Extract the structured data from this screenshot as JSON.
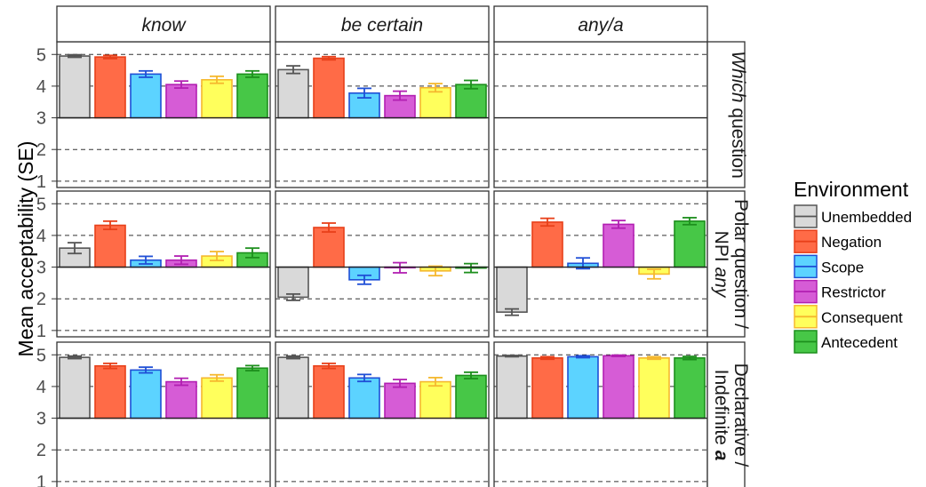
{
  "chart_data": {
    "type": "bar",
    "ylabel": "Mean acceptability (SE)",
    "baseline": 3,
    "ylim": [
      0.8,
      5.4
    ],
    "yticks": [
      1,
      2,
      3,
      4,
      5
    ],
    "grid": "dashed horizontal at integer values",
    "categories": [
      "Unembedded",
      "Negation",
      "Scope",
      "Restrictor",
      "Consequent",
      "Antecedent"
    ],
    "column_facets": [
      "know",
      "be certain",
      "any/a"
    ],
    "row_facets": [
      {
        "pre": "",
        "italic": "Which",
        "post": " question"
      },
      {
        "pre": "Polar question /",
        "italic": "",
        "post": "",
        "line2_pre": "NPI ",
        "line2_italic": "any"
      },
      {
        "pre": "Declarative /",
        "italic": "",
        "post": "",
        "line2_pre": "Indefinite ",
        "line2_bold_italic": "a"
      }
    ],
    "legend": {
      "title": "Environment",
      "position": "right",
      "entries": [
        {
          "label": "Unembedded",
          "fill": "#d9d9d9",
          "stroke": "#555555"
        },
        {
          "label": "Negation",
          "fill": "#ff6b47",
          "stroke": "#e8401a"
        },
        {
          "label": "Scope",
          "fill": "#5cd3ff",
          "stroke": "#1f4fd6"
        },
        {
          "label": "Restrictor",
          "fill": "#d65cd6",
          "stroke": "#b21fb2"
        },
        {
          "label": "Consequent",
          "fill": "#ffff5c",
          "stroke": "#f5b82e"
        },
        {
          "label": "Antecedent",
          "fill": "#47c747",
          "stroke": "#1d8f1d"
        }
      ]
    },
    "panels": [
      {
        "row": 0,
        "col": 0,
        "values": [
          4.95,
          4.92,
          4.38,
          4.05,
          4.2,
          4.38
        ],
        "se": [
          0.04,
          0.05,
          0.1,
          0.11,
          0.11,
          0.1
        ]
      },
      {
        "row": 0,
        "col": 1,
        "values": [
          4.52,
          4.88,
          3.78,
          3.7,
          3.95,
          4.05
        ],
        "se": [
          0.12,
          0.05,
          0.15,
          0.14,
          0.13,
          0.13
        ]
      },
      {
        "row": 0,
        "col": 2,
        "values": [
          3,
          3,
          3,
          3,
          3,
          3
        ],
        "se": [
          0,
          0,
          0,
          0,
          0,
          0
        ]
      },
      {
        "row": 1,
        "col": 0,
        "values": [
          3.6,
          4.32,
          3.22,
          3.22,
          3.35,
          3.45
        ],
        "se": [
          0.17,
          0.13,
          0.12,
          0.13,
          0.14,
          0.15
        ]
      },
      {
        "row": 1,
        "col": 1,
        "values": [
          2.05,
          4.25,
          2.6,
          2.98,
          2.88,
          2.97
        ],
        "se": [
          0.1,
          0.14,
          0.14,
          0.16,
          0.15,
          0.14
        ]
      },
      {
        "row": 1,
        "col": 2,
        "values": [
          1.58,
          4.42,
          3.12,
          4.35,
          2.78,
          4.45
        ],
        "se": [
          0.1,
          0.12,
          0.17,
          0.12,
          0.15,
          0.11
        ]
      },
      {
        "row": 2,
        "col": 0,
        "values": [
          4.92,
          4.65,
          4.52,
          4.15,
          4.27,
          4.58
        ],
        "se": [
          0.04,
          0.08,
          0.09,
          0.11,
          0.1,
          0.08
        ]
      },
      {
        "row": 2,
        "col": 1,
        "values": [
          4.92,
          4.65,
          4.27,
          4.1,
          4.15,
          4.35
        ],
        "se": [
          0.04,
          0.08,
          0.11,
          0.12,
          0.13,
          0.1
        ]
      },
      {
        "row": 2,
        "col": 2,
        "values": [
          4.96,
          4.9,
          4.94,
          4.97,
          4.9,
          4.9
        ],
        "se": [
          0.02,
          0.04,
          0.03,
          0.02,
          0.04,
          0.05
        ]
      }
    ]
  }
}
